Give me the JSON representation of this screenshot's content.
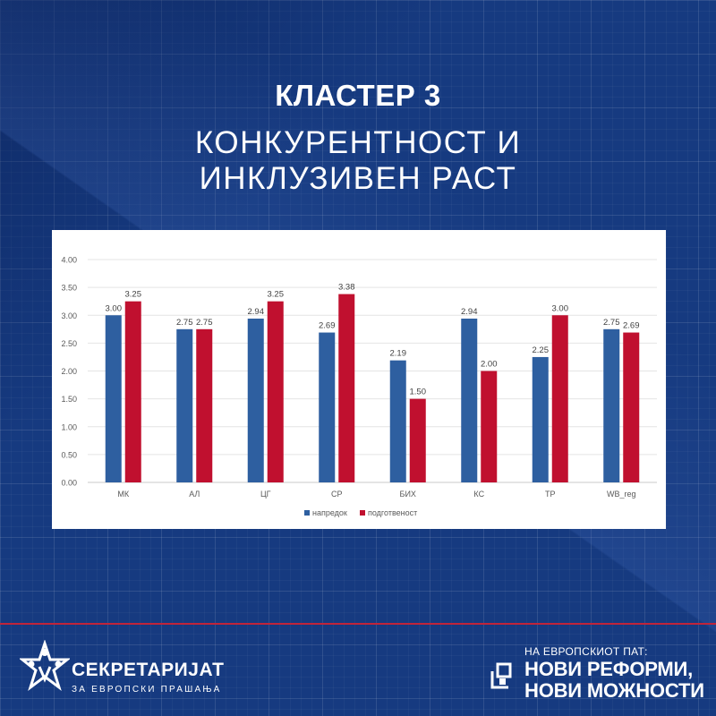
{
  "header": {
    "cluster_title": "КЛАСТЕР 3",
    "subtitle_line1": "КОНКУРЕНТНОСТ И",
    "subtitle_line2": "ИНКЛУЗИВЕН РАСТ"
  },
  "colors": {
    "background": "#163a80",
    "series_progress": "#2e5fa0",
    "series_readiness": "#c0102f",
    "accent_line": "#c0243a"
  },
  "chart_data": {
    "type": "bar",
    "categories": [
      "МК",
      "АЛ",
      "ЦГ",
      "СР",
      "БИХ",
      "КС",
      "ТР",
      "WB_reg"
    ],
    "series": [
      {
        "name": "напредок",
        "values": [
          3.0,
          2.75,
          2.94,
          2.69,
          2.19,
          2.94,
          2.25,
          2.75
        ],
        "color": "#2e5fa0"
      },
      {
        "name": "подготвеност",
        "values": [
          3.25,
          2.75,
          3.25,
          3.38,
          1.5,
          2.0,
          3.0,
          2.69
        ],
        "color": "#c0102f"
      }
    ],
    "ylim": [
      0,
      4
    ],
    "y_ticks": [
      "0.00",
      "0.50",
      "1.00",
      "1.50",
      "2.00",
      "2.50",
      "3.00",
      "3.50",
      "4.00"
    ],
    "grid": true,
    "legend_position": "bottom"
  },
  "footer": {
    "left_logo": {
      "icon": "star-people-icon",
      "name": "СЕКРЕТАРИЈАТ",
      "sub": "ЗА ЕВРОПСКИ ПРАШАЊА"
    },
    "right_logo": {
      "icon": "bracket-squares-icon",
      "tag": "НА ЕВРОПСКИОТ ПАТ:",
      "line1": "НОВИ РЕФОРМИ,",
      "line2": "НОВИ МОЖНОСТИ"
    }
  }
}
